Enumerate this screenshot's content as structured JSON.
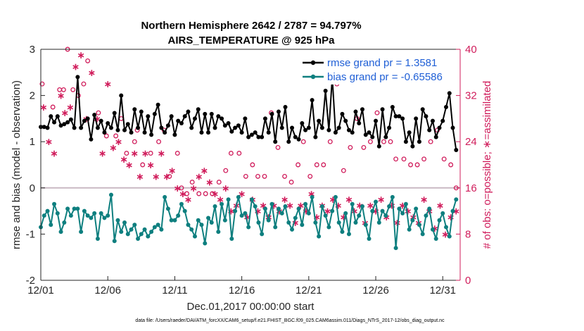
{
  "chart_data": {
    "type": "line",
    "title": "Northern Hemisphere 2642 / 2787 = 94.797%",
    "subtitle": "AIRS_TEMPERATURE @ 925 hPa",
    "xlabel": "Dec.01,2017 00:00:00 start",
    "ylabel": "rmse and bias (model - observation)",
    "ylabel_right": "# of obs: o=possible; ∗=assimilated",
    "footnote": "data file: /Users/raeder/DAI/ATM_forcXX/CAM6_setup/f.e21.FHIST_BGC.f09_025.CAM6assim.011/Diags_NTrS_2017-12/obs_diag_output.nc",
    "xlim": [
      0,
      31.3
    ],
    "ylim": [
      -2,
      3
    ],
    "ylim_right": [
      0,
      40
    ],
    "grid": false,
    "legend_position": "top-right",
    "x_tick_labels": [
      "12/01",
      "12/06",
      "12/11",
      "12/16",
      "12/21",
      "12/26",
      "12/31"
    ],
    "x_ticks": [
      0,
      5,
      10,
      15,
      20,
      25,
      30
    ],
    "y_ticks": [
      "-2",
      "-1",
      "0",
      "1",
      "2",
      "3"
    ],
    "y_ticks_right": [
      "0",
      "8",
      "16",
      "24",
      "32",
      "40"
    ],
    "series": [
      {
        "name": "rmse grand pr = 1.3581",
        "color": "#000000",
        "marker": "dot",
        "t": [
          0.0,
          0.25,
          0.5,
          0.75,
          1.0,
          1.25,
          1.5,
          1.75,
          2.0,
          2.25,
          2.5,
          2.75,
          3.0,
          3.25,
          3.5,
          3.75,
          4.0,
          4.25,
          4.5,
          4.75,
          5.0,
          5.25,
          5.5,
          5.75,
          6.0,
          6.25,
          6.5,
          6.75,
          7.0,
          7.25,
          7.5,
          7.75,
          8.0,
          8.25,
          8.5,
          8.75,
          9.0,
          9.25,
          9.5,
          9.75,
          10.0,
          10.25,
          10.5,
          10.75,
          11.0,
          11.25,
          11.5,
          11.75,
          12.0,
          12.25,
          12.5,
          12.75,
          13.0,
          13.25,
          13.5,
          13.75,
          14.0,
          14.25,
          14.5,
          14.75,
          15.0,
          15.25,
          15.5,
          15.75,
          16.0,
          16.25,
          16.5,
          16.75,
          17.0,
          17.25,
          17.5,
          17.75,
          18.0,
          18.25,
          18.5,
          18.75,
          19.0,
          19.25,
          19.5,
          19.75,
          20.0,
          20.25,
          20.5,
          20.75,
          21.0,
          21.25,
          21.5,
          21.75,
          22.0,
          22.25,
          22.5,
          22.75,
          23.0,
          23.25,
          23.5,
          23.75,
          24.0,
          24.25,
          24.5,
          24.75,
          25.0,
          25.25,
          25.5,
          25.75,
          26.0,
          26.25,
          26.5,
          26.75,
          27.0,
          27.25,
          27.5,
          27.75,
          28.0,
          28.25,
          28.5,
          28.75,
          29.0,
          29.25,
          29.5,
          29.75,
          30.0,
          30.25,
          30.5,
          30.75,
          31.0
        ],
        "values": [
          1.32,
          1.32,
          1.3,
          1.55,
          1.42,
          1.55,
          1.35,
          1.38,
          1.42,
          1.48,
          1.3,
          2.4,
          1.3,
          1.45,
          1.5,
          1.05,
          1.58,
          1.3,
          1.45,
          1.2,
          1.4,
          1.3,
          1.62,
          1.25,
          2.0,
          1.25,
          1.38,
          1.2,
          1.7,
          1.3,
          1.65,
          1.2,
          1.55,
          1.15,
          1.6,
          1.8,
          1.3,
          1.2,
          1.35,
          1.55,
          1.15,
          1.45,
          1.4,
          1.55,
          1.65,
          1.3,
          1.5,
          1.7,
          1.2,
          1.6,
          1.2,
          1.6,
          1.3,
          1.55,
          1.5,
          1.35,
          1.4,
          1.22,
          1.3,
          1.35,
          1.2,
          1.5,
          1.1,
          1.15,
          1.2,
          1.1,
          1.1,
          1.5,
          1.2,
          1.6,
          1.0,
          1.65,
          1.3,
          1.75,
          1.0,
          1.3,
          1.1,
          1.05,
          1.4,
          1.25,
          1.3,
          1.9,
          1.1,
          1.45,
          1.3,
          2.1,
          1.25,
          2.4,
          1.2,
          1.3,
          1.6,
          1.45,
          1.25,
          1.2,
          1.65,
          1.4,
          1.7,
          1.15,
          1.2,
          1.1,
          1.45,
          0.9,
          1.7,
          1.1,
          1.3,
          1.75,
          1.55,
          1.55,
          1.5,
          1.0,
          1.2,
          0.9,
          1.5,
          1.0,
          1.7,
          1.55,
          1.25,
          1.45,
          1.1,
          1.3,
          1.45,
          1.75,
          2.05,
          1.3,
          0.82
        ]
      },
      {
        "name": "bias grand pr = -0.65586",
        "color": "#0e7f7f",
        "marker": "dot",
        "t": [
          0.0,
          0.25,
          0.5,
          0.75,
          1.0,
          1.25,
          1.5,
          1.75,
          2.0,
          2.25,
          2.5,
          2.75,
          3.0,
          3.25,
          3.5,
          3.75,
          4.0,
          4.25,
          4.5,
          4.75,
          5.0,
          5.25,
          5.5,
          5.75,
          6.0,
          6.25,
          6.5,
          6.75,
          7.0,
          7.25,
          7.5,
          7.75,
          8.0,
          8.25,
          8.5,
          8.75,
          9.0,
          9.25,
          9.5,
          9.75,
          10.0,
          10.25,
          10.5,
          10.75,
          11.0,
          11.25,
          11.5,
          11.75,
          12.0,
          12.25,
          12.5,
          12.75,
          13.0,
          13.25,
          13.5,
          13.75,
          14.0,
          14.25,
          14.5,
          14.75,
          15.0,
          15.25,
          15.5,
          15.75,
          16.0,
          16.25,
          16.5,
          16.75,
          17.0,
          17.25,
          17.5,
          17.75,
          18.0,
          18.25,
          18.5,
          18.75,
          19.0,
          19.25,
          19.5,
          19.75,
          20.0,
          20.25,
          20.5,
          20.75,
          21.0,
          21.25,
          21.5,
          21.75,
          22.0,
          22.25,
          22.5,
          22.75,
          23.0,
          23.25,
          23.5,
          23.75,
          24.0,
          24.25,
          24.5,
          24.75,
          25.0,
          25.25,
          25.5,
          25.75,
          26.0,
          26.25,
          26.5,
          26.75,
          27.0,
          27.25,
          27.5,
          27.75,
          28.0,
          28.25,
          28.5,
          28.75,
          29.0,
          29.25,
          29.5,
          29.75,
          30.0,
          30.25,
          30.5,
          30.75,
          31.0
        ],
        "values": [
          -0.85,
          -0.6,
          -0.5,
          -0.8,
          -0.35,
          -0.55,
          -0.95,
          -0.75,
          -0.45,
          -0.6,
          -0.45,
          -0.45,
          -0.95,
          -0.5,
          -0.6,
          -0.65,
          -0.55,
          -1.1,
          -0.55,
          -0.65,
          -0.6,
          -0.15,
          -1.15,
          -0.7,
          -0.95,
          -0.75,
          -1.0,
          -0.9,
          -0.8,
          -1.1,
          -1.0,
          -0.9,
          -1.05,
          -0.95,
          -0.85,
          -0.8,
          -0.9,
          -0.2,
          -0.45,
          -0.7,
          -0.7,
          -0.6,
          -0.35,
          -0.5,
          -0.8,
          -0.9,
          -1.05,
          -0.7,
          -0.8,
          -1.2,
          -0.65,
          -0.75,
          -0.4,
          -0.95,
          -0.35,
          -0.7,
          -0.25,
          -1.1,
          -0.5,
          -0.2,
          -0.6,
          -0.55,
          -0.85,
          -0.25,
          -0.4,
          -0.75,
          -1.0,
          -0.45,
          -0.7,
          -0.35,
          -0.85,
          -0.45,
          -0.55,
          -0.4,
          -0.75,
          -0.9,
          -0.65,
          -0.45,
          -0.8,
          -0.35,
          -0.55,
          -0.2,
          -0.75,
          -1.05,
          -0.4,
          -0.6,
          -0.85,
          -0.5,
          -0.2,
          -0.75,
          -0.95,
          -0.55,
          -1.0,
          -0.35,
          -0.75,
          -0.6,
          -0.4,
          -0.8,
          -1.1,
          -0.5,
          -0.3,
          -0.75,
          -0.5,
          -0.6,
          -0.4,
          -0.2,
          -1.3,
          -0.45,
          -0.55,
          -0.35,
          -0.9,
          -0.7,
          -0.45,
          -0.8,
          -1.0,
          -0.6,
          -0.45,
          -0.9,
          -1.1,
          -0.7,
          -0.55,
          -0.85,
          -1.05,
          -0.5,
          -0.25
        ]
      }
    ],
    "obs_possible": {
      "name": "possible (o)",
      "color": "#d01c5b",
      "t": [
        0.1,
        0.9,
        1.4,
        1.7,
        2.0,
        2.4,
        2.8,
        3.2,
        3.5,
        4.3,
        4.9,
        5.6,
        6.0,
        6.4,
        7.0,
        7.2,
        7.6,
        8.2,
        8.8,
        9.2,
        9.6,
        10.2,
        10.5,
        10.9,
        11.3,
        11.8,
        12.3,
        12.8,
        13.3,
        13.8,
        14.2,
        14.8,
        15.3,
        15.8,
        16.2,
        16.7,
        17.2,
        17.7,
        18.2,
        18.7,
        19.2,
        19.6,
        20.1,
        20.6,
        21.1,
        21.6,
        22.1,
        22.6,
        23.1,
        23.6,
        24.1,
        24.6,
        25.1,
        25.6,
        26.1,
        26.5,
        27.1,
        27.6,
        28.1,
        28.6,
        29.1,
        29.6,
        30.1,
        30.6,
        31.0
      ],
      "values": [
        34,
        30,
        33,
        33,
        40,
        33,
        32,
        34,
        38,
        29,
        25,
        25,
        28,
        22,
        24,
        26,
        20,
        22,
        24,
        26,
        18,
        22,
        16,
        15,
        17,
        15,
        15,
        15,
        17,
        19,
        22,
        22,
        18,
        20,
        18,
        18,
        29,
        23,
        18,
        17,
        20,
        24,
        18,
        20,
        20,
        24,
        34,
        19,
        23,
        28,
        23,
        24,
        29,
        24,
        24,
        21,
        21,
        20,
        20,
        21,
        24,
        26,
        21,
        20,
        16
      ]
    },
    "obs_assimilated": {
      "name": "assimilated (∗)",
      "color": "#d01c5b",
      "t": [
        0.2,
        0.6,
        1.0,
        1.5,
        1.8,
        2.2,
        2.6,
        3.0,
        3.4,
        3.8,
        4.2,
        4.6,
        5.0,
        5.4,
        5.8,
        6.2,
        6.6,
        7.0,
        7.4,
        7.8,
        8.2,
        8.6,
        9.0,
        9.4,
        9.8,
        10.2,
        10.6,
        11.0,
        11.4,
        11.8,
        12.2,
        12.6,
        13.0,
        13.4,
        13.8,
        14.2,
        14.6,
        15.0,
        15.4,
        15.8,
        16.2,
        16.6,
        17.0,
        17.4,
        17.8,
        18.2,
        18.6,
        19.0,
        19.4,
        19.8,
        20.2,
        20.6,
        21.0,
        21.4,
        21.8,
        22.2,
        22.6,
        23.0,
        23.4,
        23.8,
        24.2,
        24.6,
        25.0,
        25.4,
        25.8,
        26.2,
        26.6,
        27.0,
        27.4,
        27.8,
        28.2,
        28.6,
        29.0,
        29.4,
        29.8,
        30.2,
        30.6,
        31.0
      ],
      "values": [
        30,
        24,
        22,
        32,
        29,
        30,
        37,
        39,
        28,
        36,
        28,
        22,
        34,
        23,
        24,
        21,
        20,
        22,
        18,
        22,
        20,
        18,
        22,
        18,
        19,
        16,
        15,
        14,
        16,
        18,
        19,
        17,
        15,
        14,
        16,
        12,
        13,
        15,
        11,
        14,
        12,
        13,
        11,
        13,
        12,
        14,
        13,
        10,
        13,
        12,
        15,
        11,
        13,
        12,
        14,
        13,
        11,
        14,
        12,
        13,
        10,
        13,
        12,
        14,
        11,
        13,
        10,
        13,
        12,
        11,
        10,
        14,
        12,
        9,
        13,
        8,
        11,
        12
      ]
    }
  }
}
